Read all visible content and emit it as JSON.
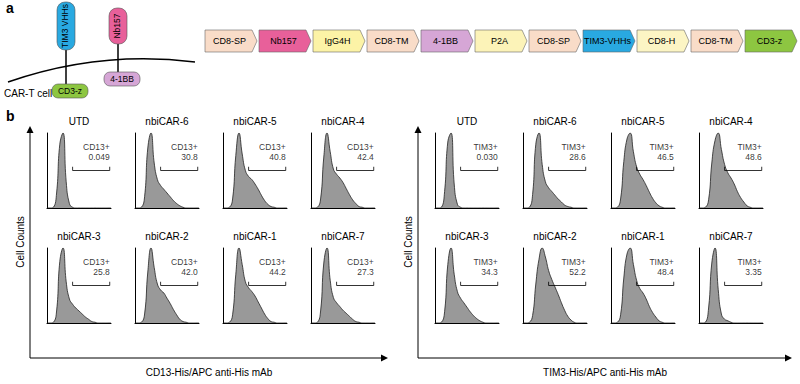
{
  "panel_labels": [
    "a",
    "b"
  ],
  "schematic": {
    "cell_label": "CAR-T cell",
    "receptors": [
      {
        "label": "TIM3 VHHs",
        "color": "#29a9e1",
        "domain": "CD3-z",
        "domain_color": "#8dc641"
      },
      {
        "label": "Nb157",
        "color": "#e8609a",
        "domain": "4-1BB",
        "domain_color": "#d6a6d6"
      }
    ]
  },
  "construct": [
    {
      "label": "CD8-SP",
      "color": "#f9dcc8"
    },
    {
      "label": "Nb157",
      "color": "#e8609a"
    },
    {
      "label": "IgG4H",
      "color": "#fcf3a6"
    },
    {
      "label": "CD8-TM",
      "color": "#f9dcc8"
    },
    {
      "label": "4-1BB",
      "color": "#d6a6d6"
    },
    {
      "label": "P2A",
      "color": "#fcf3b8"
    },
    {
      "label": "CD8-SP",
      "color": "#f9dcc8"
    },
    {
      "label": "TIM3-VHHs",
      "color": "#29a9e1"
    },
    {
      "label": "CD8-H",
      "color": "#fcf5c4"
    },
    {
      "label": "CD8-TM",
      "color": "#f9dcc8"
    },
    {
      "label": "CD3-z",
      "color": "#8dc641"
    }
  ],
  "axis_titles": [
    {
      "x": "CD13-His/APC anti-His mAb",
      "y": "Cell Counts"
    },
    {
      "x": "TIM3-His/APC anti-His mAb",
      "y": "Cell Counts"
    }
  ],
  "chart_data": [
    {
      "type": "area",
      "title": "UTD",
      "color": "#999999",
      "xlim": [
        0,
        100
      ],
      "ylim": [
        0,
        100
      ],
      "tick_labels": false,
      "x": [
        0,
        5,
        10,
        15,
        20,
        25,
        30,
        35,
        40,
        45,
        50,
        55,
        60,
        65,
        70,
        75,
        80,
        85,
        90,
        95,
        100
      ],
      "values": [
        0,
        0,
        1,
        20,
        85,
        100,
        35,
        6,
        1,
        0,
        0,
        0,
        0,
        0,
        0,
        0,
        0,
        0,
        0,
        0,
        0
      ],
      "gate": {
        "label": "CD13+",
        "value": 0.049,
        "range": [
          40,
          98
        ]
      }
    },
    {
      "type": "area",
      "title": "nbiCAR-6",
      "color": "#999999",
      "xlim": [
        0,
        100
      ],
      "ylim": [
        0,
        100
      ],
      "tick_labels": false,
      "x": [
        0,
        5,
        10,
        15,
        20,
        25,
        30,
        35,
        40,
        45,
        50,
        55,
        60,
        65,
        70,
        75,
        80,
        85,
        90,
        95,
        100
      ],
      "values": [
        0,
        0,
        1,
        15,
        80,
        100,
        60,
        38,
        30,
        25,
        20,
        15,
        10,
        6,
        3,
        1,
        0,
        0,
        0,
        0,
        0
      ],
      "gate": {
        "label": "CD13+",
        "value": 30.8,
        "range": [
          40,
          98
        ]
      }
    },
    {
      "type": "area",
      "title": "nbiCAR-5",
      "color": "#999999",
      "xlim": [
        0,
        100
      ],
      "ylim": [
        0,
        100
      ],
      "tick_labels": false,
      "x": [
        0,
        5,
        10,
        15,
        20,
        25,
        30,
        35,
        40,
        45,
        50,
        55,
        60,
        65,
        70,
        75,
        80,
        85,
        90,
        95,
        100
      ],
      "values": [
        0,
        0,
        1,
        12,
        70,
        100,
        72,
        50,
        42,
        38,
        32,
        25,
        17,
        10,
        5,
        2,
        1,
        0,
        0,
        0,
        0
      ],
      "gate": {
        "label": "CD13+",
        "value": 40.8,
        "range": [
          40,
          98
        ]
      }
    },
    {
      "type": "area",
      "title": "nbiCAR-4",
      "color": "#999999",
      "xlim": [
        0,
        100
      ],
      "ylim": [
        0,
        100
      ],
      "tick_labels": false,
      "x": [
        0,
        5,
        10,
        15,
        20,
        25,
        30,
        35,
        40,
        45,
        50,
        55,
        60,
        65,
        70,
        75,
        80,
        85,
        90,
        95,
        100
      ],
      "values": [
        0,
        0,
        1,
        12,
        68,
        100,
        75,
        52,
        45,
        40,
        34,
        26,
        18,
        11,
        6,
        2,
        1,
        0,
        0,
        0,
        0
      ],
      "gate": {
        "label": "CD13+",
        "value": 42.4,
        "range": [
          40,
          98
        ]
      }
    },
    {
      "type": "area",
      "title": "nbiCAR-3",
      "color": "#999999",
      "xlim": [
        0,
        100
      ],
      "ylim": [
        0,
        100
      ],
      "tick_labels": false,
      "x": [
        0,
        5,
        10,
        15,
        20,
        25,
        30,
        35,
        40,
        45,
        50,
        55,
        60,
        65,
        70,
        75,
        80,
        85,
        90,
        95,
        100
      ],
      "values": [
        0,
        0,
        1,
        16,
        82,
        100,
        55,
        32,
        25,
        20,
        16,
        12,
        8,
        5,
        2,
        1,
        0,
        0,
        0,
        0,
        0
      ],
      "gate": {
        "label": "CD13+",
        "value": 25.8,
        "range": [
          40,
          98
        ]
      }
    },
    {
      "type": "area",
      "title": "nbiCAR-2",
      "color": "#999999",
      "xlim": [
        0,
        100
      ],
      "ylim": [
        0,
        100
      ],
      "tick_labels": false,
      "x": [
        0,
        5,
        10,
        15,
        20,
        25,
        30,
        35,
        40,
        45,
        50,
        55,
        60,
        65,
        70,
        75,
        80,
        85,
        90,
        95,
        100
      ],
      "values": [
        0,
        0,
        1,
        12,
        68,
        100,
        74,
        52,
        44,
        40,
        33,
        26,
        18,
        11,
        5,
        2,
        1,
        0,
        0,
        0,
        0
      ],
      "gate": {
        "label": "CD13+",
        "value": {
          "value": 42.0,
          "label": "42.0"
        },
        "range": [
          40,
          98
        ]
      }
    },
    {
      "type": "area",
      "title": "nbiCAR-1",
      "color": "#999999",
      "xlim": [
        0,
        100
      ],
      "ylim": [
        0,
        100
      ],
      "tick_labels": false,
      "x": [
        0,
        5,
        10,
        15,
        20,
        25,
        30,
        35,
        40,
        45,
        50,
        55,
        60,
        65,
        70,
        75,
        80,
        85,
        90,
        95,
        100
      ],
      "values": [
        0,
        0,
        1,
        11,
        65,
        100,
        78,
        55,
        47,
        42,
        36,
        28,
        20,
        12,
        6,
        2,
        1,
        0,
        0,
        0,
        0
      ],
      "gate": {
        "label": "CD13+",
        "value": 44.2,
        "range": [
          40,
          98
        ]
      }
    },
    {
      "type": "area",
      "title": "nbiCAR-7",
      "color": "#999999",
      "xlim": [
        0,
        100
      ],
      "ylim": [
        0,
        100
      ],
      "tick_labels": false,
      "x": [
        0,
        5,
        10,
        15,
        20,
        25,
        30,
        35,
        40,
        45,
        50,
        55,
        60,
        65,
        70,
        75,
        80,
        85,
        90,
        95,
        100
      ],
      "values": [
        0,
        0,
        1,
        16,
        80,
        100,
        57,
        34,
        27,
        22,
        17,
        13,
        9,
        5,
        2,
        1,
        0,
        0,
        0,
        0,
        0
      ],
      "gate": {
        "label": "CD13+",
        "value": 27.3,
        "range": [
          40,
          98
        ]
      }
    },
    {
      "type": "area",
      "title": "UTD",
      "color": "#999999",
      "xlim": [
        0,
        100
      ],
      "ylim": [
        0,
        100
      ],
      "tick_labels": false,
      "x": [
        0,
        5,
        10,
        15,
        20,
        25,
        30,
        35,
        40,
        45,
        50,
        55,
        60,
        65,
        70,
        75,
        80,
        85,
        90,
        95,
        100
      ],
      "values": [
        0,
        0,
        1,
        22,
        88,
        100,
        32,
        5,
        1,
        0,
        0,
        0,
        0,
        0,
        0,
        0,
        0,
        0,
        0,
        0,
        0
      ],
      "gate": {
        "label": "TIM3+",
        "value": {
          "value": 0.03,
          "label": "0.030"
        },
        "range": [
          40,
          98
        ]
      }
    },
    {
      "type": "area",
      "title": "nbiCAR-6",
      "color": "#999999",
      "xlim": [
        0,
        100
      ],
      "ylim": [
        0,
        100
      ],
      "tick_labels": false,
      "x": [
        0,
        5,
        10,
        15,
        20,
        25,
        30,
        35,
        40,
        45,
        50,
        55,
        60,
        65,
        70,
        75,
        80,
        85,
        90,
        95,
        100
      ],
      "values": [
        0,
        0,
        1,
        18,
        85,
        100,
        58,
        35,
        27,
        22,
        17,
        12,
        8,
        4,
        2,
        1,
        0,
        0,
        0,
        0,
        0
      ],
      "gate": {
        "label": "TIM3+",
        "value": 28.6,
        "range": [
          40,
          98
        ]
      }
    },
    {
      "type": "area",
      "title": "nbiCAR-5",
      "color": "#999999",
      "xlim": [
        0,
        100
      ],
      "ylim": [
        0,
        100
      ],
      "tick_labels": false,
      "x": [
        0,
        5,
        10,
        15,
        20,
        25,
        30,
        35,
        40,
        45,
        50,
        55,
        60,
        65,
        70,
        75,
        80,
        85,
        90,
        95,
        100
      ],
      "values": [
        0,
        0,
        1,
        12,
        62,
        92,
        100,
        75,
        55,
        45,
        38,
        30,
        21,
        13,
        7,
        3,
        1,
        0,
        0,
        0,
        0
      ],
      "gate": {
        "label": "TIM3+",
        "value": 46.5,
        "range": [
          40,
          98
        ]
      }
    },
    {
      "type": "area",
      "title": "nbiCAR-4",
      "color": "#999999",
      "xlim": [
        0,
        100
      ],
      "ylim": [
        0,
        100
      ],
      "tick_labels": false,
      "x": [
        0,
        5,
        10,
        15,
        20,
        25,
        30,
        35,
        40,
        45,
        50,
        55,
        60,
        65,
        70,
        75,
        80,
        85,
        90,
        95,
        100
      ],
      "values": [
        0,
        0,
        1,
        11,
        60,
        90,
        100,
        78,
        58,
        47,
        40,
        32,
        22,
        14,
        8,
        3,
        1,
        0,
        0,
        0,
        0
      ],
      "gate": {
        "label": "TIM3+",
        "value": 48.6,
        "range": [
          40,
          98
        ]
      }
    },
    {
      "type": "area",
      "title": "nbiCAR-3",
      "color": "#999999",
      "xlim": [
        0,
        100
      ],
      "ylim": [
        0,
        100
      ],
      "tick_labels": false,
      "x": [
        0,
        5,
        10,
        15,
        20,
        25,
        30,
        35,
        40,
        45,
        50,
        55,
        60,
        65,
        70,
        75,
        80,
        85,
        90,
        95,
        100
      ],
      "values": [
        0,
        0,
        1,
        15,
        78,
        100,
        65,
        42,
        33,
        27,
        21,
        15,
        10,
        6,
        3,
        1,
        0,
        0,
        0,
        0,
        0
      ],
      "gate": {
        "label": "TIM3+",
        "value": 34.3,
        "range": [
          40,
          98
        ]
      }
    },
    {
      "type": "area",
      "title": "nbiCAR-2",
      "color": "#999999",
      "xlim": [
        0,
        100
      ],
      "ylim": [
        0,
        100
      ],
      "tick_labels": false,
      "x": [
        0,
        5,
        10,
        15,
        20,
        25,
        30,
        35,
        40,
        45,
        50,
        55,
        60,
        65,
        70,
        75,
        80,
        85,
        90,
        95,
        100
      ],
      "values": [
        0,
        0,
        1,
        10,
        52,
        85,
        100,
        88,
        70,
        58,
        48,
        38,
        27,
        17,
        9,
        4,
        1,
        0,
        0,
        0,
        0
      ],
      "gate": {
        "label": "TIM3+",
        "value": 52.2,
        "range": [
          40,
          98
        ]
      }
    },
    {
      "type": "area",
      "title": "nbiCAR-1",
      "color": "#999999",
      "xlim": [
        0,
        100
      ],
      "ylim": [
        0,
        100
      ],
      "tick_labels": false,
      "x": [
        0,
        5,
        10,
        15,
        20,
        25,
        30,
        35,
        40,
        45,
        50,
        55,
        60,
        65,
        70,
        75,
        80,
        85,
        90,
        95,
        100
      ],
      "values": [
        0,
        0,
        1,
        11,
        60,
        92,
        100,
        78,
        57,
        46,
        40,
        32,
        22,
        14,
        8,
        3,
        1,
        0,
        0,
        0,
        0
      ],
      "gate": {
        "label": "TIM3+",
        "value": 48.4,
        "range": [
          40,
          98
        ]
      }
    },
    {
      "type": "area",
      "title": "nbiCAR-7",
      "color": "#999999",
      "xlim": [
        0,
        100
      ],
      "ylim": [
        0,
        100
      ],
      "tick_labels": false,
      "x": [
        0,
        5,
        10,
        15,
        20,
        25,
        30,
        35,
        40,
        45,
        50,
        55,
        60,
        65,
        70,
        75,
        80,
        85,
        90,
        95,
        100
      ],
      "values": [
        0,
        0,
        1,
        20,
        80,
        100,
        45,
        12,
        5,
        3,
        1,
        0,
        0,
        0,
        0,
        0,
        0,
        0,
        0,
        0,
        0
      ],
      "gate": {
        "label": "TIM3+",
        "value": 3.35,
        "range": [
          40,
          98
        ]
      }
    }
  ]
}
